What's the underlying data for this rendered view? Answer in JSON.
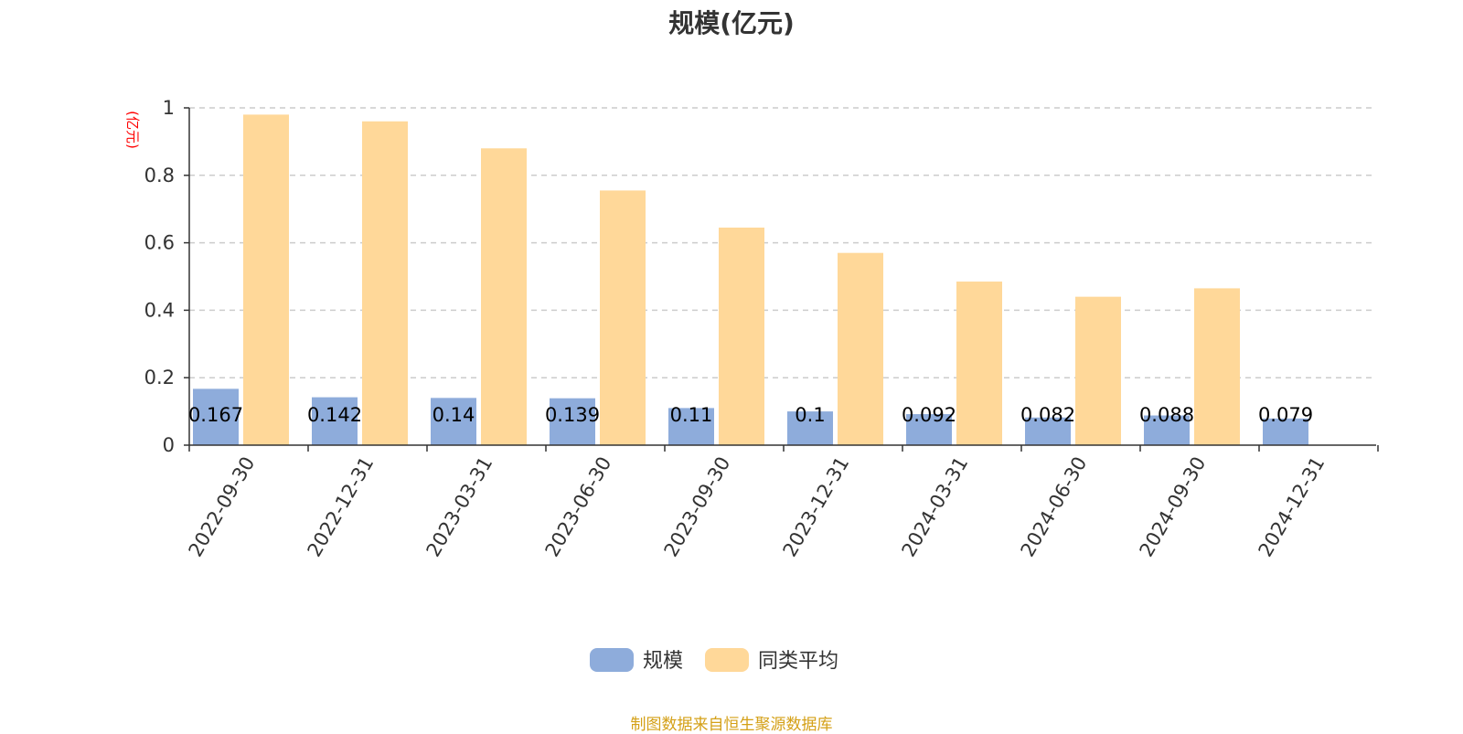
{
  "title": "规模(亿元)",
  "source_note": "制图数据来自恒生聚源数据库",
  "colors": {
    "series_scale": "#8eacdb",
    "series_peer": "#ffd899",
    "axis": "#333333",
    "grid": "#cccccc",
    "unit_label": "#ff0000",
    "source_note": "#d4a017"
  },
  "chart_data": {
    "type": "bar",
    "title": "规模(亿元)",
    "ylabel": "(亿元)",
    "xlabel": "",
    "ylim": [
      0,
      1
    ],
    "yticks": [
      0,
      0.2,
      0.4,
      0.6,
      0.8,
      1
    ],
    "yticks_labels": [
      "0",
      "0.2",
      "0.4",
      "0.6",
      "0.8",
      "1"
    ],
    "grid": true,
    "legend_position": "bottom-center",
    "categories": [
      "2022-09-30",
      "2022-12-31",
      "2023-03-31",
      "2023-06-30",
      "2023-09-30",
      "2023-12-31",
      "2024-03-31",
      "2024-06-30",
      "2024-09-30",
      "2024-12-31"
    ],
    "series": [
      {
        "name": "规模",
        "values": [
          0.167,
          0.142,
          0.14,
          0.139,
          0.11,
          0.1,
          0.092,
          0.082,
          0.088,
          0.079
        ],
        "labels": [
          "0.167",
          "0.142",
          "0.14",
          "0.139",
          "0.11",
          "0.1",
          "0.092",
          "0.082",
          "0.088",
          "0.079"
        ]
      },
      {
        "name": "同类平均",
        "values": [
          0.98,
          0.96,
          0.88,
          0.755,
          0.645,
          0.57,
          0.485,
          0.44,
          0.465,
          null
        ]
      }
    ]
  }
}
